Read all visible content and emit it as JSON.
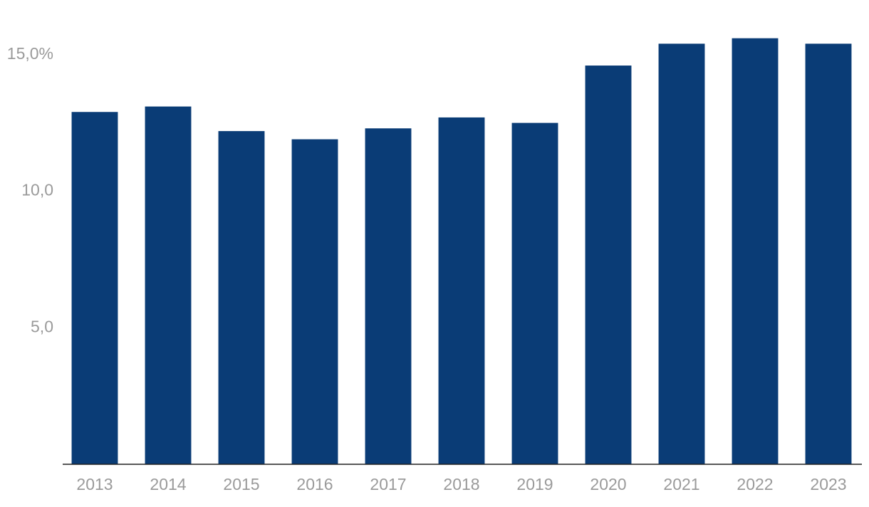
{
  "chart_data": {
    "type": "bar",
    "categories": [
      "2013",
      "2014",
      "2015",
      "2016",
      "2017",
      "2018",
      "2019",
      "2020",
      "2021",
      "2022",
      "2023"
    ],
    "values": [
      12.9,
      13.1,
      12.2,
      11.9,
      12.3,
      12.7,
      12.5,
      14.6,
      15.4,
      15.6,
      15.4
    ],
    "color": "#0a3c76",
    "ylim": [
      0,
      17
    ],
    "yticks": [
      {
        "value": 5,
        "label": "5,0"
      },
      {
        "value": 10,
        "label": "10,0"
      },
      {
        "value": 15,
        "label": "15,0%"
      }
    ],
    "grid": false
  }
}
